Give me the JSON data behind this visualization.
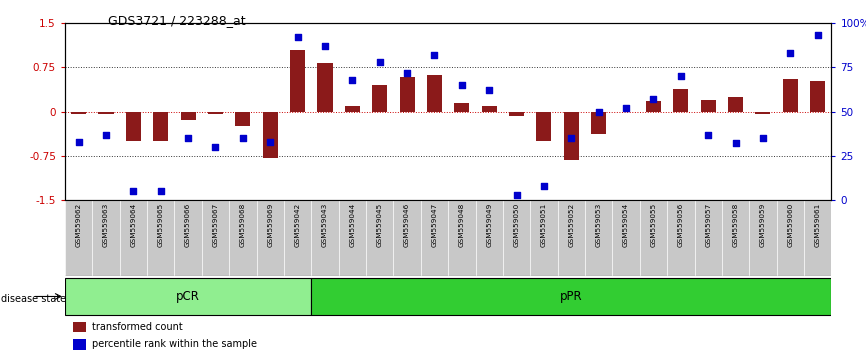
{
  "title": "GDS3721 / 223288_at",
  "samples": [
    "GSM559062",
    "GSM559063",
    "GSM559064",
    "GSM559065",
    "GSM559066",
    "GSM559067",
    "GSM559068",
    "GSM559069",
    "GSM559042",
    "GSM559043",
    "GSM559044",
    "GSM559045",
    "GSM559046",
    "GSM559047",
    "GSM559048",
    "GSM559049",
    "GSM559050",
    "GSM559051",
    "GSM559052",
    "GSM559053",
    "GSM559054",
    "GSM559055",
    "GSM559056",
    "GSM559057",
    "GSM559058",
    "GSM559059",
    "GSM559060",
    "GSM559061"
  ],
  "bar_values": [
    -0.04,
    -0.04,
    -0.5,
    -0.5,
    -0.15,
    -0.04,
    -0.25,
    -0.78,
    1.05,
    0.82,
    0.1,
    0.45,
    0.58,
    0.62,
    0.15,
    0.1,
    -0.08,
    -0.5,
    -0.82,
    -0.38,
    0.0,
    0.18,
    0.38,
    0.2,
    0.25,
    -0.04,
    0.55,
    0.52
  ],
  "dot_values_pct": [
    33,
    37,
    5,
    5,
    35,
    30,
    35,
    33,
    92,
    87,
    68,
    78,
    72,
    82,
    65,
    62,
    3,
    8,
    35,
    50,
    52,
    57,
    70,
    37,
    32,
    35,
    83,
    93
  ],
  "pCR_count": 9,
  "pPR_count": 19,
  "bar_color": "#8B1A1A",
  "dot_color": "#0000CC",
  "ylim": [
    -1.5,
    1.5
  ],
  "yticks_left": [
    -1.5,
    -0.75,
    0.0,
    0.75,
    1.5
  ],
  "yticks_right_vals": [
    -1.5,
    -0.75,
    0.0,
    0.75,
    1.5
  ],
  "yticks_right_labels": [
    "0",
    "25",
    "50",
    "75",
    "100%"
  ],
  "zero_line_color": "#CC0000",
  "dotted_line_color": "#333333",
  "pCR_color": "#90EE90",
  "pPR_color": "#32CD32",
  "label_bg_color": "#C8C8C8",
  "legend_red": "transformed count",
  "legend_blue": "percentile rank within the sample",
  "disease_state_label": "disease state"
}
